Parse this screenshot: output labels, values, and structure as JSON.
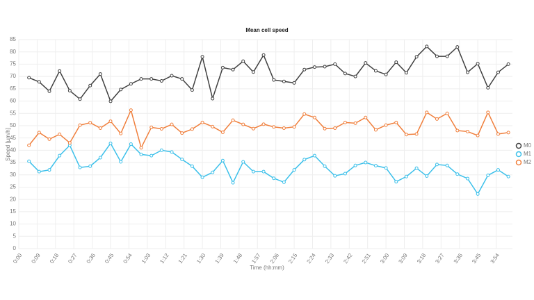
{
  "chart_data": {
    "type": "line",
    "title": "Mean cell speed",
    "x_label": "Time (hh:mm)",
    "y_label": "Speed [µm/h]",
    "x": [
      5,
      10,
      15,
      20,
      25,
      30,
      35,
      40,
      45,
      50,
      55,
      60,
      65,
      70,
      75,
      80,
      85,
      90,
      95,
      100,
      105,
      110,
      115,
      120,
      125,
      130,
      135,
      140,
      145,
      150,
      155,
      160,
      165,
      170,
      175,
      180,
      185,
      190,
      195,
      200,
      205,
      210,
      215,
      220,
      225,
      230,
      235,
      240
    ],
    "series": [
      {
        "name": "M0",
        "color": "#404040",
        "values": [
          69.5,
          67.8,
          64,
          72.2,
          64.2,
          60.8,
          66.3,
          71,
          59.9,
          64.7,
          67,
          69,
          69,
          68.2,
          70.3,
          69,
          64.5,
          78,
          61,
          73.6,
          72.8,
          76.2,
          71.8,
          78.7,
          68.6,
          68,
          67.4,
          72.8,
          73.8,
          74,
          75,
          71.2,
          70,
          75.5,
          72.3,
          70.8,
          75.8,
          71.5,
          78,
          82.2,
          78.2,
          78.2,
          82,
          71.7,
          75.2,
          65.4,
          71.7,
          75
        ]
      },
      {
        "name": "M1",
        "color": "#3cc0ea",
        "values": [
          35.5,
          31.3,
          32,
          37.8,
          42,
          33,
          33.5,
          37,
          42.8,
          35.3,
          42.5,
          38.3,
          37.8,
          40,
          39.3,
          36.3,
          33.5,
          29,
          31,
          35.8,
          26.8,
          35.3,
          31.3,
          31.3,
          28.6,
          27,
          32,
          36.2,
          37.8,
          33.5,
          29.6,
          30.5,
          33.8,
          35,
          33.7,
          32.8,
          27.2,
          29.3,
          32.7,
          29.5,
          34.2,
          33.8,
          30.3,
          28.5,
          22.2,
          29.8,
          32,
          29.3
        ]
      },
      {
        "name": "M2",
        "color": "#f07f3c",
        "values": [
          42,
          47.2,
          44.5,
          46.5,
          43,
          50.2,
          51.2,
          49,
          51.8,
          46.8,
          56.3,
          41,
          49.3,
          48.7,
          50.5,
          47,
          48.6,
          51.3,
          49.6,
          47.3,
          52.2,
          50.5,
          48.8,
          50.6,
          49.5,
          49,
          49.5,
          54.7,
          53.3,
          48.8,
          49,
          51.3,
          51,
          53.3,
          48.3,
          50.2,
          51.3,
          46.4,
          46.6,
          55.4,
          52.7,
          55,
          48,
          47.6,
          46,
          55.4,
          46.6,
          47.2
        ]
      }
    ],
    "xlim": [
      0,
      242
    ],
    "xticks": [
      {
        "value": 0,
        "label": "0:00"
      },
      {
        "value": 9,
        "label": "0:09"
      },
      {
        "value": 18,
        "label": "0:18"
      },
      {
        "value": 27,
        "label": "0:27"
      },
      {
        "value": 36,
        "label": "0:36"
      },
      {
        "value": 45,
        "label": "0:45"
      },
      {
        "value": 54,
        "label": "0:54"
      },
      {
        "value": 63,
        "label": "1:03"
      },
      {
        "value": 72,
        "label": "1:12"
      },
      {
        "value": 81,
        "label": "1:21"
      },
      {
        "value": 90,
        "label": "1:30"
      },
      {
        "value": 99,
        "label": "1:39"
      },
      {
        "value": 108,
        "label": "1:48"
      },
      {
        "value": 117,
        "label": "1:57"
      },
      {
        "value": 126,
        "label": "2:06"
      },
      {
        "value": 135,
        "label": "2:15"
      },
      {
        "value": 144,
        "label": "2:24"
      },
      {
        "value": 153,
        "label": "2:33"
      },
      {
        "value": 162,
        "label": "2:42"
      },
      {
        "value": 171,
        "label": "2:51"
      },
      {
        "value": 180,
        "label": "3:00"
      },
      {
        "value": 189,
        "label": "3:09"
      },
      {
        "value": 198,
        "label": "3:18"
      },
      {
        "value": 207,
        "label": "3:27"
      },
      {
        "value": 216,
        "label": "3:36"
      },
      {
        "value": 225,
        "label": "3:45"
      },
      {
        "value": 234,
        "label": "3:54"
      }
    ],
    "ylim": [
      0,
      85
    ],
    "yticks": [
      0,
      5,
      10,
      15,
      20,
      25,
      30,
      35,
      40,
      45,
      50,
      55,
      60,
      65,
      70,
      75,
      80,
      85
    ],
    "grid": true,
    "legend": "right"
  }
}
